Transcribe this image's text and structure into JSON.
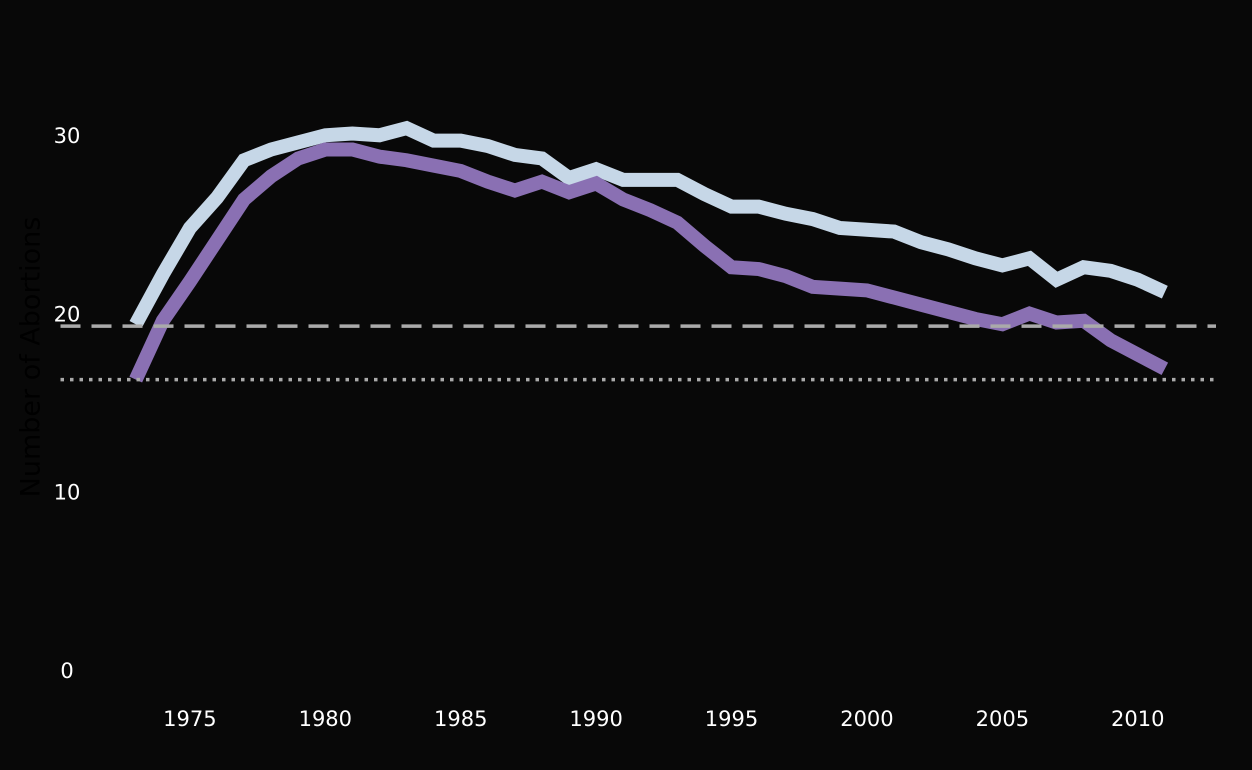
{
  "chart_data": {
    "type": "line",
    "y_label": "Number of Abortions",
    "x": [
      1973,
      1974,
      1975,
      1976,
      1977,
      1978,
      1979,
      1980,
      1981,
      1982,
      1983,
      1984,
      1985,
      1986,
      1987,
      1988,
      1989,
      1990,
      1991,
      1992,
      1993,
      1994,
      1995,
      1996,
      1997,
      1998,
      1999,
      2000,
      2001,
      2002,
      2003,
      2004,
      2005,
      2006,
      2007,
      2008,
      2009,
      2010,
      2011
    ],
    "series": [
      {
        "color": "#c6d7e7",
        "values": [
          19.5,
          22.3,
          24.9,
          26.6,
          28.7,
          29.3,
          29.7,
          30.1,
          30.2,
          30.1,
          30.5,
          29.8,
          29.8,
          29.5,
          29.0,
          28.8,
          27.7,
          28.2,
          27.6,
          27.6,
          27.6,
          26.8,
          26.1,
          26.1,
          25.7,
          25.4,
          24.9,
          24.8,
          24.7,
          24.1,
          23.7,
          23.2,
          22.8,
          23.2,
          22.0,
          22.7,
          22.5,
          22.0,
          21.3
        ]
      },
      {
        "color": "#8a70b3",
        "values": [
          16.4,
          19.7,
          21.9,
          24.2,
          26.5,
          27.8,
          28.8,
          29.3,
          29.3,
          28.9,
          28.7,
          28.4,
          28.1,
          27.5,
          27.0,
          27.5,
          26.9,
          27.4,
          26.5,
          25.9,
          25.2,
          23.9,
          22.7,
          22.6,
          22.2,
          21.6,
          21.5,
          21.4,
          21.0,
          20.6,
          20.2,
          19.8,
          19.5,
          20.1,
          19.6,
          19.7,
          18.6,
          17.8,
          17.0
        ]
      }
    ],
    "hlines": [
      {
        "value": 19.4,
        "style": "dashed",
        "color": "#aaaaaa"
      },
      {
        "value": 16.4,
        "style": "dotted",
        "color": "#aaaaaa"
      }
    ],
    "xlim": [
      1970,
      2013
    ],
    "xticks": [
      1975,
      1980,
      1985,
      1990,
      1995,
      2000,
      2005,
      2010
    ],
    "ylim": [
      0,
      35
    ],
    "yticks": [
      0,
      10,
      20,
      30
    ],
    "grid": false
  }
}
